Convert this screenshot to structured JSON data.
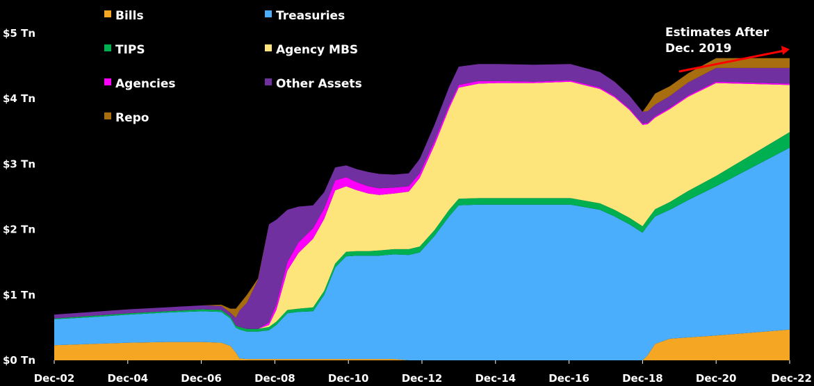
{
  "chart_data": {
    "type": "area",
    "stacked": true,
    "title": "",
    "xlabel": "",
    "ylabel": "",
    "x": [
      2002.96,
      2004,
      2005,
      2006,
      2007,
      2007.5,
      2007.75,
      2007.9,
      2008.0,
      2008.2,
      2008.5,
      2008.8,
      2009.0,
      2009.3,
      2009.6,
      2010.0,
      2010.3,
      2010.6,
      2010.9,
      2011.2,
      2011.5,
      2011.8,
      2012.2,
      2012.6,
      2012.9,
      2013.3,
      2013.7,
      2013.96,
      2014.5,
      2015,
      2016,
      2017,
      2017.8,
      2018.2,
      2018.6,
      2018.96,
      2019.1,
      2019.3,
      2019.7,
      2020.2,
      2020.96,
      2022.96
    ],
    "x_tick_labels": [
      "Dec-02",
      "Dec-04",
      "Dec-06",
      "Dec-08",
      "Dec-10",
      "Dec-12",
      "Dec-14",
      "Dec-16",
      "Dec-18",
      "Dec-20",
      "Dec-22"
    ],
    "x_ticks": [
      2002.96,
      2004.96,
      2006.96,
      2008.96,
      2010.96,
      2012.96,
      2014.96,
      2016.96,
      2018.96,
      2020.96,
      2022.96
    ],
    "y_tick_labels": [
      "$0 Tn",
      "$1 Tn",
      "$2 Tn",
      "$3 Tn",
      "$4 Tn",
      "$5 Tn"
    ],
    "ylim": [
      0,
      5
    ],
    "xlim": [
      2002.96,
      2022.96
    ],
    "series": [
      {
        "name": "Bills",
        "color": "#f5a623",
        "values": [
          0.23,
          0.25,
          0.27,
          0.28,
          0.28,
          0.27,
          0.22,
          0.12,
          0.03,
          0.02,
          0.02,
          0.02,
          0.02,
          0.02,
          0.02,
          0.02,
          0.02,
          0.02,
          0.02,
          0.02,
          0.02,
          0.02,
          0.02,
          0.0,
          0.0,
          0.0,
          0.0,
          0.0,
          0.0,
          0.0,
          0.0,
          0.0,
          0.0,
          0.0,
          0.0,
          0.0,
          0.08,
          0.25,
          0.33,
          0.35,
          0.38,
          0.47
        ]
      },
      {
        "name": "Treasuries",
        "color": "#4aaefc",
        "values": [
          0.4,
          0.41,
          0.43,
          0.45,
          0.47,
          0.47,
          0.42,
          0.38,
          0.44,
          0.42,
          0.42,
          0.44,
          0.52,
          0.7,
          0.72,
          0.73,
          0.98,
          1.4,
          1.57,
          1.58,
          1.58,
          1.58,
          1.6,
          1.61,
          1.65,
          1.9,
          2.2,
          2.37,
          2.38,
          2.38,
          2.38,
          2.38,
          2.3,
          2.2,
          2.08,
          1.95,
          1.98,
          1.95,
          1.97,
          2.1,
          2.28,
          2.78
        ]
      },
      {
        "name": "TIPS",
        "color": "#00b050",
        "values": [
          0.01,
          0.02,
          0.02,
          0.02,
          0.03,
          0.03,
          0.03,
          0.03,
          0.04,
          0.04,
          0.04,
          0.05,
          0.05,
          0.05,
          0.05,
          0.06,
          0.06,
          0.06,
          0.07,
          0.07,
          0.07,
          0.08,
          0.08,
          0.09,
          0.09,
          0.09,
          0.1,
          0.1,
          0.1,
          0.1,
          0.1,
          0.1,
          0.1,
          0.1,
          0.1,
          0.1,
          0.1,
          0.11,
          0.12,
          0.14,
          0.16,
          0.24
        ]
      },
      {
        "name": "Agency  MBS",
        "color": "#fde47b",
        "values": [
          0.0,
          0.0,
          0.0,
          0.0,
          0.0,
          0.0,
          0.0,
          0.0,
          0.0,
          0.0,
          0.0,
          0.03,
          0.18,
          0.6,
          0.85,
          1.05,
          1.1,
          1.12,
          1.0,
          0.93,
          0.88,
          0.85,
          0.85,
          0.88,
          1.05,
          1.3,
          1.55,
          1.7,
          1.75,
          1.76,
          1.76,
          1.78,
          1.75,
          1.72,
          1.65,
          1.55,
          1.45,
          1.4,
          1.42,
          1.44,
          1.42,
          0.72
        ]
      },
      {
        "name": "Agencies",
        "color": "#ff00ff",
        "values": [
          0.0,
          0.0,
          0.0,
          0.0,
          0.0,
          0.0,
          0.0,
          0.0,
          0.0,
          0.0,
          0.0,
          0.04,
          0.08,
          0.13,
          0.16,
          0.16,
          0.16,
          0.15,
          0.14,
          0.12,
          0.11,
          0.1,
          0.09,
          0.08,
          0.07,
          0.06,
          0.05,
          0.04,
          0.04,
          0.03,
          0.02,
          0.02,
          0.02,
          0.02,
          0.02,
          0.02,
          0.02,
          0.02,
          0.02,
          0.02,
          0.02,
          0.02
        ]
      },
      {
        "name": "Other Assets",
        "color": "#7030a0",
        "values": [
          0.06,
          0.06,
          0.06,
          0.06,
          0.06,
          0.06,
          0.06,
          0.12,
          0.25,
          0.4,
          0.75,
          1.5,
          1.3,
          0.8,
          0.55,
          0.35,
          0.25,
          0.2,
          0.18,
          0.2,
          0.22,
          0.22,
          0.2,
          0.2,
          0.22,
          0.25,
          0.28,
          0.28,
          0.26,
          0.26,
          0.26,
          0.25,
          0.24,
          0.22,
          0.2,
          0.18,
          0.18,
          0.18,
          0.18,
          0.2,
          0.21,
          0.24
        ]
      },
      {
        "name": "Repo",
        "color": "#a86d0f",
        "values": [
          0.0,
          0.0,
          0.0,
          0.0,
          0.0,
          0.02,
          0.06,
          0.14,
          0.1,
          0.12,
          0.02,
          0.0,
          0.0,
          0.0,
          0.0,
          0.0,
          0.0,
          0.0,
          0.0,
          0.0,
          0.0,
          0.0,
          0.0,
          0.0,
          0.0,
          0.0,
          0.0,
          0.0,
          0.0,
          0.0,
          0.0,
          0.0,
          0.0,
          0.0,
          0.0,
          0.0,
          0.1,
          0.17,
          0.15,
          0.14,
          0.15,
          0.15
        ]
      }
    ],
    "legend": {
      "placement": "top-left",
      "columns": [
        [
          "Bills",
          "TIPS",
          "Agencies",
          "Repo"
        ],
        [
          "Treasuries",
          "Agency  MBS",
          "Other Assets"
        ]
      ]
    },
    "annotation": {
      "lines": [
        "Estimates After",
        "Dec. 2019"
      ],
      "arrow_color": "#ff0000"
    },
    "grid": false
  }
}
